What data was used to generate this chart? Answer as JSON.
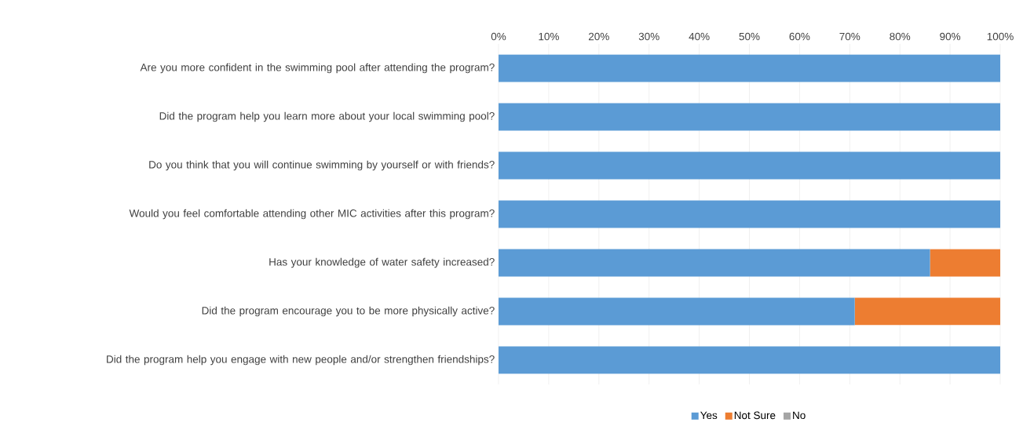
{
  "chart_data": {
    "type": "bar",
    "orientation": "horizontal",
    "stacked": true,
    "categories": [
      "Are you more confident in the swimming pool after attending the program?",
      "Did the program help you learn more about your local swimming pool?",
      "Do you think that you will continue swimming by yourself or with friends?",
      "Would you feel comfortable attending other MIC activities after this program?",
      "Has your knowledge of water safety increased?",
      "Did the program encourage you to be more physically active?",
      "Did the program help you engage with new people and/or strengthen friendships?"
    ],
    "series": [
      {
        "name": "Yes",
        "color": "#5b9bd5",
        "values": [
          100,
          100,
          100,
          100,
          86,
          71,
          100
        ]
      },
      {
        "name": "Not Sure",
        "color": "#ed7d31",
        "values": [
          0,
          0,
          0,
          0,
          14,
          29,
          0
        ]
      },
      {
        "name": "No",
        "color": "#a5a5a5",
        "values": [
          0,
          0,
          0,
          0,
          0,
          0,
          0
        ]
      }
    ],
    "xlim": [
      0,
      100
    ],
    "xticks": [
      {
        "value": 0,
        "label": "0%"
      },
      {
        "value": 10,
        "label": "10%"
      },
      {
        "value": 20,
        "label": "20%"
      },
      {
        "value": 30,
        "label": "30%"
      },
      {
        "value": 40,
        "label": "40%"
      },
      {
        "value": 50,
        "label": "50%"
      },
      {
        "value": 60,
        "label": "60%"
      },
      {
        "value": 70,
        "label": "70%"
      },
      {
        "value": 80,
        "label": "80%"
      },
      {
        "value": 90,
        "label": "90%"
      },
      {
        "value": 100,
        "label": "100%"
      }
    ],
    "grid": "x",
    "legend": "bottom"
  }
}
